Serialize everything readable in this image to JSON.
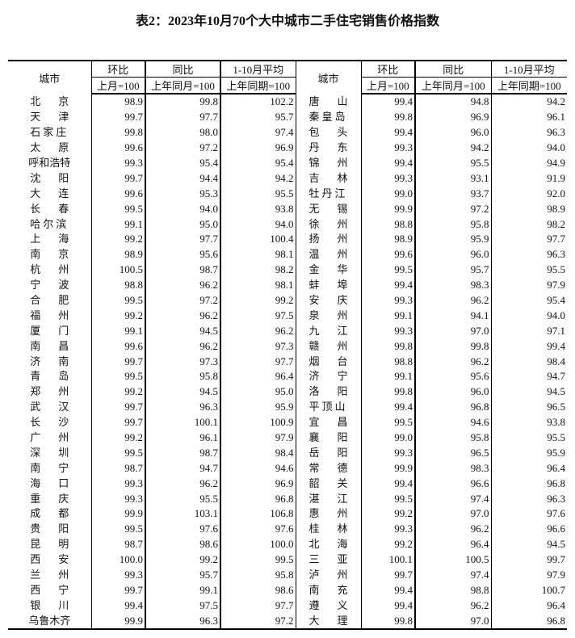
{
  "title": "表2：2023年10月70个大中城市二手住宅销售价格指数",
  "headers": {
    "city": "城市",
    "mom": "环比",
    "yoy": "同比",
    "avg": "1-10月平均",
    "mom_base": "上月=100",
    "yoy_base": "上年同月=100",
    "avg_base": "上年同期=100"
  },
  "left": [
    [
      "北京",
      "98.9",
      "99.8",
      "102.2"
    ],
    [
      "天津",
      "99.7",
      "97.7",
      "95.7"
    ],
    [
      "石家庄",
      "99.8",
      "98.0",
      "97.4"
    ],
    [
      "太原",
      "99.6",
      "97.2",
      "96.9"
    ],
    [
      "呼和浩特",
      "99.3",
      "95.4",
      "95.4"
    ],
    [
      "沈阳",
      "99.7",
      "94.4",
      "94.2"
    ],
    [
      "大连",
      "99.6",
      "95.3",
      "95.5"
    ],
    [
      "长春",
      "99.5",
      "94.0",
      "93.8"
    ],
    [
      "哈尔滨",
      "99.1",
      "95.0",
      "94.0"
    ],
    [
      "上海",
      "99.2",
      "97.7",
      "100.4"
    ],
    [
      "南京",
      "98.9",
      "95.6",
      "98.1"
    ],
    [
      "杭州",
      "100.5",
      "98.7",
      "98.2"
    ],
    [
      "宁波",
      "98.8",
      "96.2",
      "98.1"
    ],
    [
      "合肥",
      "99.5",
      "97.2",
      "99.2"
    ],
    [
      "福州",
      "99.2",
      "96.2",
      "97.5"
    ],
    [
      "厦门",
      "99.1",
      "94.5",
      "96.2"
    ],
    [
      "南昌",
      "99.6",
      "96.2",
      "97.3"
    ],
    [
      "济南",
      "99.7",
      "97.3",
      "97.7"
    ],
    [
      "青岛",
      "99.5",
      "95.8",
      "96.4"
    ],
    [
      "郑州",
      "99.2",
      "94.5",
      "95.0"
    ],
    [
      "武汉",
      "99.7",
      "96.3",
      "95.9"
    ],
    [
      "长沙",
      "99.7",
      "100.1",
      "100.9"
    ],
    [
      "广州",
      "99.2",
      "96.1",
      "97.9"
    ],
    [
      "深圳",
      "99.5",
      "98.7",
      "98.4"
    ],
    [
      "南宁",
      "98.7",
      "94.7",
      "94.6"
    ],
    [
      "海口",
      "99.3",
      "96.2",
      "96.9"
    ],
    [
      "重庆",
      "99.3",
      "95.5",
      "96.8"
    ],
    [
      "成都",
      "99.9",
      "103.1",
      "106.8"
    ],
    [
      "贵阳",
      "99.5",
      "97.6",
      "97.6"
    ],
    [
      "昆明",
      "98.7",
      "98.6",
      "100.0"
    ],
    [
      "西安",
      "100.0",
      "99.2",
      "99.5"
    ],
    [
      "兰州",
      "99.3",
      "95.7",
      "95.8"
    ],
    [
      "西宁",
      "99.7",
      "99.1",
      "98.6"
    ],
    [
      "银川",
      "99.4",
      "97.5",
      "97.7"
    ],
    [
      "乌鲁木齐",
      "99.9",
      "96.3",
      "97.2"
    ]
  ],
  "right": [
    [
      "唐山",
      "99.4",
      "94.8",
      "94.2"
    ],
    [
      "秦皇岛",
      "99.8",
      "96.9",
      "96.1"
    ],
    [
      "包头",
      "99.4",
      "96.0",
      "96.3"
    ],
    [
      "丹东",
      "99.3",
      "94.2",
      "94.0"
    ],
    [
      "锦州",
      "99.4",
      "95.5",
      "94.9"
    ],
    [
      "吉林",
      "99.3",
      "93.1",
      "91.9"
    ],
    [
      "牡丹江",
      "99.0",
      "93.7",
      "92.0"
    ],
    [
      "无锡",
      "99.9",
      "97.2",
      "98.9"
    ],
    [
      "徐州",
      "98.8",
      "95.8",
      "98.2"
    ],
    [
      "扬州",
      "98.9",
      "95.9",
      "97.7"
    ],
    [
      "温州",
      "99.6",
      "96.0",
      "96.3"
    ],
    [
      "金华",
      "99.5",
      "95.7",
      "95.5"
    ],
    [
      "蚌埠",
      "99.4",
      "98.3",
      "97.9"
    ],
    [
      "安庆",
      "99.3",
      "96.2",
      "95.4"
    ],
    [
      "泉州",
      "99.1",
      "94.1",
      "94.0"
    ],
    [
      "九江",
      "99.3",
      "97.0",
      "97.1"
    ],
    [
      "赣州",
      "99.8",
      "99.8",
      "99.4"
    ],
    [
      "烟台",
      "98.8",
      "96.2",
      "98.4"
    ],
    [
      "济宁",
      "99.1",
      "95.6",
      "94.7"
    ],
    [
      "洛阳",
      "99.8",
      "96.0",
      "94.5"
    ],
    [
      "平顶山",
      "99.4",
      "96.8",
      "96.5"
    ],
    [
      "宜昌",
      "99.5",
      "94.6",
      "93.8"
    ],
    [
      "襄阳",
      "99.0",
      "95.8",
      "95.5"
    ],
    [
      "岳阳",
      "99.3",
      "96.5",
      "95.9"
    ],
    [
      "常德",
      "99.9",
      "98.3",
      "96.4"
    ],
    [
      "韶关",
      "99.4",
      "96.6",
      "96.8"
    ],
    [
      "湛江",
      "99.5",
      "97.4",
      "96.3"
    ],
    [
      "惠州",
      "99.2",
      "97.0",
      "97.6"
    ],
    [
      "桂林",
      "99.3",
      "96.2",
      "96.6"
    ],
    [
      "北海",
      "99.2",
      "96.4",
      "94.5"
    ],
    [
      "三亚",
      "100.1",
      "100.5",
      "99.7"
    ],
    [
      "泸州",
      "99.7",
      "97.4",
      "97.9"
    ],
    [
      "南充",
      "99.4",
      "98.8",
      "100.7"
    ],
    [
      "遵义",
      "99.4",
      "96.2",
      "96.4"
    ],
    [
      "大理",
      "99.8",
      "97.0",
      "96.8"
    ]
  ]
}
